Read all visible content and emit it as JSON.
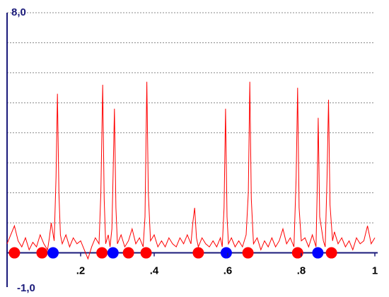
{
  "chart_data": {
    "type": "line",
    "title": "",
    "xlabel": "",
    "ylabel": "",
    "xlim": [
      0,
      1
    ],
    "ylim": [
      -1,
      8
    ],
    "y_top_label": "8,0",
    "y_bottom_label": "-1,0",
    "x_tick_labels": [
      {
        "value": 0.2,
        "label": ".2"
      },
      {
        "value": 0.4,
        "label": ".4"
      },
      {
        "value": 0.6,
        "label": ".6"
      },
      {
        "value": 0.8,
        "label": ".8"
      },
      {
        "value": 1.0,
        "label": "1"
      }
    ],
    "gridlines_y": [
      0,
      1,
      2,
      3,
      4,
      5,
      6,
      7,
      8
    ],
    "grid": true,
    "series": [
      {
        "color": "#ff0000",
        "points": [
          [
            0.0,
            0.3
          ],
          [
            0.01,
            0.6
          ],
          [
            0.02,
            0.9
          ],
          [
            0.03,
            0.4
          ],
          [
            0.04,
            0.2
          ],
          [
            0.05,
            0.5
          ],
          [
            0.06,
            0.1
          ],
          [
            0.07,
            0.35
          ],
          [
            0.08,
            0.2
          ],
          [
            0.09,
            0.6
          ],
          [
            0.1,
            0.3
          ],
          [
            0.11,
            0.1
          ],
          [
            0.115,
            0.5
          ],
          [
            0.12,
            1.0
          ],
          [
            0.128,
            0.4
          ],
          [
            0.133,
            2.5
          ],
          [
            0.137,
            5.3
          ],
          [
            0.141,
            2.0
          ],
          [
            0.145,
            0.6
          ],
          [
            0.15,
            0.3
          ],
          [
            0.16,
            0.6
          ],
          [
            0.17,
            0.2
          ],
          [
            0.18,
            0.5
          ],
          [
            0.19,
            0.3
          ],
          [
            0.2,
            0.4
          ],
          [
            0.21,
            0.1
          ],
          [
            0.22,
            -0.2
          ],
          [
            0.23,
            0.2
          ],
          [
            0.24,
            0.5
          ],
          [
            0.25,
            0.3
          ],
          [
            0.255,
            2.0
          ],
          [
            0.26,
            5.6
          ],
          [
            0.264,
            1.8
          ],
          [
            0.268,
            0.3
          ],
          [
            0.275,
            0.6
          ],
          [
            0.28,
            0.2
          ],
          [
            0.285,
            0.8
          ],
          [
            0.288,
            2.5
          ],
          [
            0.292,
            4.8
          ],
          [
            0.296,
            1.5
          ],
          [
            0.3,
            0.3
          ],
          [
            0.31,
            0.6
          ],
          [
            0.32,
            0.2
          ],
          [
            0.33,
            0.4
          ],
          [
            0.34,
            0.8
          ],
          [
            0.35,
            0.3
          ],
          [
            0.36,
            0.5
          ],
          [
            0.37,
            0.2
          ],
          [
            0.375,
            1.2
          ],
          [
            0.38,
            5.7
          ],
          [
            0.384,
            2.0
          ],
          [
            0.39,
            0.4
          ],
          [
            0.4,
            0.6
          ],
          [
            0.41,
            0.2
          ],
          [
            0.42,
            0.4
          ],
          [
            0.43,
            0.2
          ],
          [
            0.44,
            0.5
          ],
          [
            0.45,
            0.3
          ],
          [
            0.46,
            0.2
          ],
          [
            0.47,
            0.5
          ],
          [
            0.48,
            0.3
          ],
          [
            0.49,
            0.6
          ],
          [
            0.5,
            0.3
          ],
          [
            0.505,
            1.0
          ],
          [
            0.51,
            1.5
          ],
          [
            0.515,
            0.5
          ],
          [
            0.52,
            0.2
          ],
          [
            0.53,
            0.5
          ],
          [
            0.54,
            0.3
          ],
          [
            0.55,
            0.2
          ],
          [
            0.56,
            0.4
          ],
          [
            0.57,
            0.2
          ],
          [
            0.58,
            0.5
          ],
          [
            0.585,
            0.2
          ],
          [
            0.59,
            1.5
          ],
          [
            0.594,
            4.8
          ],
          [
            0.598,
            1.2
          ],
          [
            0.602,
            0.3
          ],
          [
            0.61,
            0.5
          ],
          [
            0.62,
            0.2
          ],
          [
            0.63,
            0.4
          ],
          [
            0.64,
            0.2
          ],
          [
            0.65,
            0.6
          ],
          [
            0.656,
            2.0
          ],
          [
            0.66,
            5.7
          ],
          [
            0.664,
            1.8
          ],
          [
            0.67,
            0.3
          ],
          [
            0.68,
            0.5
          ],
          [
            0.69,
            0.1
          ],
          [
            0.7,
            0.4
          ],
          [
            0.71,
            0.2
          ],
          [
            0.72,
            0.5
          ],
          [
            0.73,
            0.2
          ],
          [
            0.74,
            0.4
          ],
          [
            0.75,
            0.8
          ],
          [
            0.76,
            0.3
          ],
          [
            0.77,
            0.5
          ],
          [
            0.78,
            0.2
          ],
          [
            0.786,
            2.5
          ],
          [
            0.79,
            5.5
          ],
          [
            0.794,
            1.5
          ],
          [
            0.8,
            0.4
          ],
          [
            0.81,
            0.5
          ],
          [
            0.82,
            0.2
          ],
          [
            0.83,
            0.6
          ],
          [
            0.84,
            0.2
          ],
          [
            0.843,
            2.0
          ],
          [
            0.846,
            4.5
          ],
          [
            0.85,
            1.2
          ],
          [
            0.86,
            0.4
          ],
          [
            0.865,
            0.2
          ],
          [
            0.87,
            2.5
          ],
          [
            0.874,
            5.1
          ],
          [
            0.878,
            1.6
          ],
          [
            0.885,
            0.4
          ],
          [
            0.89,
            0.7
          ],
          [
            0.9,
            0.3
          ],
          [
            0.91,
            0.5
          ],
          [
            0.92,
            0.2
          ],
          [
            0.93,
            0.4
          ],
          [
            0.94,
            0.1
          ],
          [
            0.95,
            0.5
          ],
          [
            0.96,
            0.3
          ],
          [
            0.97,
            0.4
          ],
          [
            0.98,
            0.9
          ],
          [
            0.99,
            0.3
          ],
          [
            1.0,
            0.5
          ]
        ]
      }
    ],
    "markers": [
      {
        "x": 0.02,
        "color": "#ff0000"
      },
      {
        "x": 0.095,
        "color": "#ff0000"
      },
      {
        "x": 0.125,
        "color": "#0000ff"
      },
      {
        "x": 0.258,
        "color": "#ff0000"
      },
      {
        "x": 0.288,
        "color": "#0000ff"
      },
      {
        "x": 0.33,
        "color": "#ff0000"
      },
      {
        "x": 0.378,
        "color": "#ff0000"
      },
      {
        "x": 0.52,
        "color": "#ff0000"
      },
      {
        "x": 0.596,
        "color": "#0000ff"
      },
      {
        "x": 0.655,
        "color": "#ff0000"
      },
      {
        "x": 0.79,
        "color": "#ff0000"
      },
      {
        "x": 0.845,
        "color": "#0000ff"
      },
      {
        "x": 0.882,
        "color": "#ff0000"
      }
    ],
    "axis_color": "#1a1a7a",
    "grid_color": "#888888"
  }
}
